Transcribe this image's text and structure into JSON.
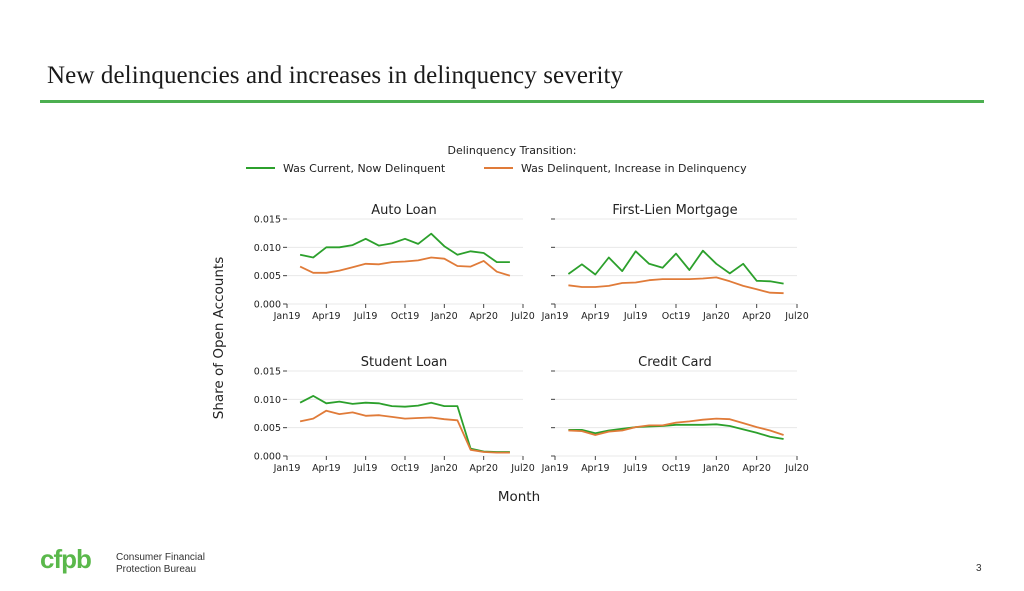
{
  "slide": {
    "title": "New delinquencies and increases in delinquency severity",
    "page_number": "3"
  },
  "footer": {
    "logo_mark": "cfpb",
    "logo_line1": "Consumer Financial",
    "logo_line2": "Protection Bureau"
  },
  "colors": {
    "accent_rule": "#4caf50",
    "series_current": "#2ca02c",
    "series_delinquent": "#e07b39",
    "logo_green": "#5ab84b"
  },
  "chart_data": {
    "type": "line",
    "legend_title": "Delinquency Transition:",
    "legend_position": "top-center",
    "xlabel": "Month",
    "ylabel": "Share of Open Accounts",
    "xticks": [
      "Jan19",
      "Apr19",
      "Jul19",
      "Oct19",
      "Jan20",
      "Apr20",
      "Jul20"
    ],
    "yticks": [
      "0.000",
      "0.005",
      "0.010",
      "0.015"
    ],
    "ylim": [
      0,
      0.015
    ],
    "x_months": [
      "2019-01",
      "2019-02",
      "2019-03",
      "2019-04",
      "2019-05",
      "2019-06",
      "2019-07",
      "2019-08",
      "2019-09",
      "2019-10",
      "2019-11",
      "2019-12",
      "2020-01",
      "2020-02",
      "2020-03",
      "2020-04",
      "2020-05",
      "2020-06"
    ],
    "series_names": [
      "Was Current, Now Delinquent",
      "Was Delinquent, Increase in Delinquency"
    ],
    "panels": [
      {
        "title": "Auto Loan",
        "series": [
          {
            "name": "Was Current, Now Delinquent",
            "values": [
              0.0087,
              0.0082,
              0.01,
              0.01,
              0.0104,
              0.0115,
              0.0103,
              0.0107,
              0.0115,
              0.0106,
              0.0124,
              0.0102,
              0.0087,
              0.0093,
              0.009,
              0.0074,
              0.0074,
              null
            ]
          },
          {
            "name": "Was Delinquent, Increase in Delinquency",
            "values": [
              0.0066,
              0.0055,
              0.0055,
              0.0059,
              0.0065,
              0.0071,
              0.007,
              0.0074,
              0.0075,
              0.0077,
              0.0082,
              0.008,
              0.0067,
              0.0066,
              0.0076,
              0.0057,
              0.005,
              null
            ]
          }
        ]
      },
      {
        "title": "First-Lien Mortgage",
        "series": [
          {
            "name": "Was Current, Now Delinquent",
            "values": [
              0.0053,
              0.007,
              0.0052,
              0.0082,
              0.0058,
              0.0093,
              0.0071,
              0.0064,
              0.0089,
              0.006,
              0.0094,
              0.0071,
              0.0054,
              0.0071,
              0.0041,
              0.004,
              0.0036,
              null
            ]
          },
          {
            "name": "Was Delinquent, Increase in Delinquency",
            "values": [
              0.0033,
              0.003,
              0.003,
              0.0032,
              0.0037,
              0.0038,
              0.0042,
              0.0044,
              0.0044,
              0.0044,
              0.0045,
              0.0047,
              0.004,
              0.0032,
              0.0026,
              0.002,
              0.0019,
              null
            ]
          }
        ]
      },
      {
        "title": "Student Loan",
        "series": [
          {
            "name": "Was Current, Now Delinquent",
            "values": [
              0.0094,
              0.0106,
              0.0093,
              0.0096,
              0.0092,
              0.0094,
              0.0093,
              0.0088,
              0.0087,
              0.0089,
              0.0094,
              0.0088,
              0.0088,
              0.0013,
              0.0008,
              0.0007,
              0.0007,
              null
            ]
          },
          {
            "name": "Was Delinquent, Increase in Delinquency",
            "values": [
              0.0061,
              0.0066,
              0.008,
              0.0074,
              0.0077,
              0.0071,
              0.0072,
              0.0069,
              0.0066,
              0.0067,
              0.0068,
              0.0065,
              0.0063,
              0.0011,
              0.0007,
              0.0006,
              0.0006,
              null
            ]
          }
        ]
      },
      {
        "title": "Credit Card",
        "series": [
          {
            "name": "Was Current, Now Delinquent",
            "values": [
              0.0046,
              0.0046,
              0.004,
              0.0045,
              0.0048,
              0.0051,
              0.0052,
              0.0053,
              0.0055,
              0.0055,
              0.0055,
              0.0056,
              0.0053,
              0.0047,
              0.0041,
              0.0034,
              0.003,
              null
            ]
          },
          {
            "name": "Was Delinquent, Increase in Delinquency",
            "values": [
              0.0045,
              0.0044,
              0.0037,
              0.0043,
              0.0045,
              0.0051,
              0.0054,
              0.0054,
              0.0059,
              0.0061,
              0.0064,
              0.0066,
              0.0065,
              0.0058,
              0.0051,
              0.0045,
              0.0037,
              null
            ]
          }
        ]
      }
    ]
  }
}
